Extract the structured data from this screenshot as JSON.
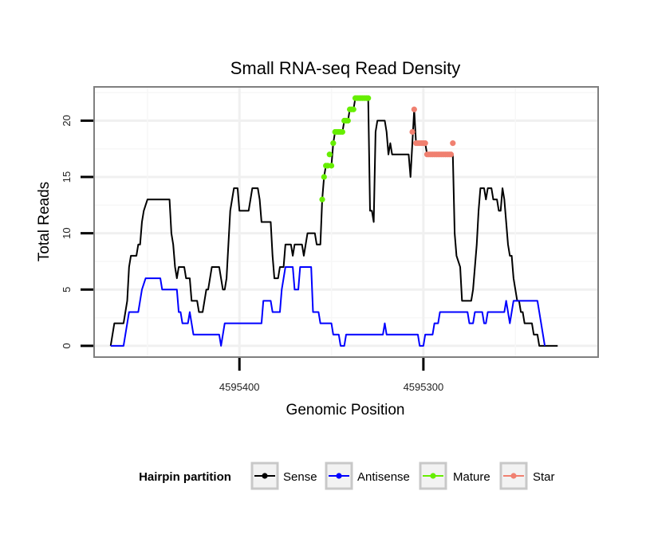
{
  "chart_data": {
    "type": "line",
    "title": "Small RNA-seq Read Density",
    "xlabel": "Genomic Position",
    "ylabel": "Total Reads",
    "x_reversed": true,
    "xlim": [
      4595479,
      4595205
    ],
    "ylim": [
      -1,
      23
    ],
    "x_ticks": [
      {
        "value": 4595400,
        "label": "4595400"
      },
      {
        "value": 4595300,
        "label": "4595300"
      }
    ],
    "y_ticks": [
      {
        "value": 0,
        "label": "0"
      },
      {
        "value": 5,
        "label": "5"
      },
      {
        "value": 10,
        "label": "10"
      },
      {
        "value": 15,
        "label": "15"
      },
      {
        "value": 20,
        "label": "20"
      }
    ],
    "legend": {
      "title": "Hairpin partition",
      "position": "bottom",
      "entries": [
        {
          "name": "Sense",
          "color": "#000000"
        },
        {
          "name": "Antisense",
          "color": "#0000ff"
        },
        {
          "name": "Mature",
          "color": "#66ee00"
        },
        {
          "name": "Star",
          "color": "#f08070"
        }
      ]
    },
    "series": [
      {
        "name": "Sense",
        "color": "#000000",
        "points": [
          [
            4595470,
            0
          ],
          [
            4595468,
            2
          ],
          [
            4595463,
            2
          ],
          [
            4595461,
            4
          ],
          [
            4595460,
            7
          ],
          [
            4595459,
            8
          ],
          [
            4595456,
            8
          ],
          [
            4595455,
            9
          ],
          [
            4595454,
            9
          ],
          [
            4595453,
            11
          ],
          [
            4595452,
            12
          ],
          [
            4595451,
            12.5
          ],
          [
            4595450,
            13
          ],
          [
            4595438,
            13
          ],
          [
            4595437,
            10
          ],
          [
            4595436,
            9
          ],
          [
            4595435,
            7
          ],
          [
            4595434,
            6
          ],
          [
            4595433,
            7
          ],
          [
            4595430,
            7
          ],
          [
            4595429,
            6
          ],
          [
            4595427,
            6
          ],
          [
            4595426,
            4
          ],
          [
            4595423,
            4
          ],
          [
            4595422,
            3
          ],
          [
            4595420,
            3
          ],
          [
            4595419,
            4
          ],
          [
            4595418,
            5
          ],
          [
            4595417,
            5
          ],
          [
            4595416,
            6
          ],
          [
            4595415,
            7
          ],
          [
            4595411,
            7
          ],
          [
            4595410,
            6
          ],
          [
            4595409,
            5
          ],
          [
            4595408,
            5
          ],
          [
            4595407,
            6
          ],
          [
            4595406,
            9
          ],
          [
            4595405,
            12
          ],
          [
            4595404,
            13
          ],
          [
            4595403,
            14
          ],
          [
            4595401,
            14
          ],
          [
            4595400,
            12
          ],
          [
            4595395,
            12
          ],
          [
            4595394,
            13
          ],
          [
            4595393,
            14
          ],
          [
            4595390,
            14
          ],
          [
            4595389,
            13
          ],
          [
            4595388,
            11
          ],
          [
            4595383,
            11
          ],
          [
            4595382,
            8
          ],
          [
            4595381,
            6
          ],
          [
            4595379,
            6
          ],
          [
            4595378,
            7
          ],
          [
            4595376,
            7
          ],
          [
            4595375,
            9
          ],
          [
            4595372,
            9
          ],
          [
            4595371,
            8
          ],
          [
            4595370,
            9
          ],
          [
            4595366,
            9
          ],
          [
            4595365,
            8
          ],
          [
            4595364,
            9
          ],
          [
            4595363,
            10
          ],
          [
            4595359,
            10
          ],
          [
            4595358,
            9
          ],
          [
            4595356,
            9
          ],
          [
            4595355,
            13
          ],
          [
            4595354,
            15
          ],
          [
            4595353,
            16
          ],
          [
            4595350,
            16
          ],
          [
            4595349,
            18
          ],
          [
            4595348,
            19
          ],
          [
            4595344,
            19
          ],
          [
            4595343,
            20
          ],
          [
            4595341,
            20
          ],
          [
            4595340,
            21
          ],
          [
            4595338,
            21
          ],
          [
            4595337,
            22
          ],
          [
            4595330,
            22
          ],
          [
            4595329,
            12
          ],
          [
            4595328,
            12
          ],
          [
            4595327,
            11
          ],
          [
            4595326,
            19
          ],
          [
            4595325,
            20
          ],
          [
            4595321,
            20
          ],
          [
            4595320,
            19
          ],
          [
            4595319,
            17
          ],
          [
            4595318,
            18
          ],
          [
            4595317,
            17
          ],
          [
            4595308,
            17
          ],
          [
            4595307,
            15
          ],
          [
            4595306,
            18
          ],
          [
            4595305,
            21
          ],
          [
            4595304,
            18
          ],
          [
            4595299,
            18
          ],
          [
            4595298,
            17
          ],
          [
            4595284,
            17
          ],
          [
            4595283,
            10
          ],
          [
            4595282,
            8
          ],
          [
            4595281,
            7.5
          ],
          [
            4595280,
            7
          ],
          [
            4595279,
            4
          ],
          [
            4595274,
            4
          ],
          [
            4595273,
            5
          ],
          [
            4595272,
            7
          ],
          [
            4595271,
            9
          ],
          [
            4595270,
            12
          ],
          [
            4595269,
            14
          ],
          [
            4595267,
            14
          ],
          [
            4595266,
            13
          ],
          [
            4595265,
            14
          ],
          [
            4595263,
            14
          ],
          [
            4595262,
            13
          ],
          [
            4595260,
            13
          ],
          [
            4595259,
            12
          ],
          [
            4595258,
            12
          ],
          [
            4595257,
            14
          ],
          [
            4595256,
            13
          ],
          [
            4595255,
            11
          ],
          [
            4595254,
            9
          ],
          [
            4595253,
            8
          ],
          [
            4595252,
            8
          ],
          [
            4595251,
            6
          ],
          [
            4595250,
            5
          ],
          [
            4595249,
            4
          ],
          [
            4595248,
            4
          ],
          [
            4595247,
            3
          ],
          [
            4595246,
            3
          ],
          [
            4595245,
            2
          ],
          [
            4595241,
            2
          ],
          [
            4595240,
            1
          ],
          [
            4595238,
            1
          ],
          [
            4595237,
            0
          ],
          [
            4595227,
            0
          ]
        ]
      },
      {
        "name": "Antisense",
        "color": "#0000ff",
        "points": [
          [
            4595470,
            0
          ],
          [
            4595463,
            0
          ],
          [
            4595462,
            1
          ],
          [
            4595461,
            2
          ],
          [
            4595460,
            3
          ],
          [
            4595455,
            3
          ],
          [
            4595454,
            4
          ],
          [
            4595453,
            5
          ],
          [
            4595452,
            5.5
          ],
          [
            4595451,
            6
          ],
          [
            4595443,
            6
          ],
          [
            4595442,
            5
          ],
          [
            4595434,
            5
          ],
          [
            4595433,
            3
          ],
          [
            4595432,
            3
          ],
          [
            4595431,
            2
          ],
          [
            4595428,
            2
          ],
          [
            4595427,
            3
          ],
          [
            4595426,
            2
          ],
          [
            4595425,
            1
          ],
          [
            4595411,
            1
          ],
          [
            4595410,
            0
          ],
          [
            4595409,
            1
          ],
          [
            4595408,
            2
          ],
          [
            4595388,
            2
          ],
          [
            4595387,
            4
          ],
          [
            4595383,
            4
          ],
          [
            4595382,
            3
          ],
          [
            4595378,
            3
          ],
          [
            4595377,
            5
          ],
          [
            4595376,
            6
          ],
          [
            4595375,
            7
          ],
          [
            4595371,
            7
          ],
          [
            4595370,
            5
          ],
          [
            4595368,
            5
          ],
          [
            4595367,
            7
          ],
          [
            4595361,
            7
          ],
          [
            4595360,
            3
          ],
          [
            4595357,
            3
          ],
          [
            4595356,
            2
          ],
          [
            4595350,
            2
          ],
          [
            4595349,
            1
          ],
          [
            4595346,
            1
          ],
          [
            4595345,
            0
          ],
          [
            4595343,
            0
          ],
          [
            4595342,
            1
          ],
          [
            4595322,
            1
          ],
          [
            4595321,
            2
          ],
          [
            4595320,
            1
          ],
          [
            4595303,
            1
          ],
          [
            4595302,
            0
          ],
          [
            4595300,
            0
          ],
          [
            4595299,
            1
          ],
          [
            4595295,
            1
          ],
          [
            4595294,
            2
          ],
          [
            4595292,
            2
          ],
          [
            4595291,
            3
          ],
          [
            4595276,
            3
          ],
          [
            4595275,
            2
          ],
          [
            4595273,
            2
          ],
          [
            4595272,
            3
          ],
          [
            4595268,
            3
          ],
          [
            4595267,
            2
          ],
          [
            4595266,
            2
          ],
          [
            4595265,
            3
          ],
          [
            4595256,
            3
          ],
          [
            4595255,
            4
          ],
          [
            4595254,
            3
          ],
          [
            4595253,
            2
          ],
          [
            4595252,
            3
          ],
          [
            4595251,
            4
          ],
          [
            4595238,
            4
          ],
          [
            4595237,
            3
          ],
          [
            4595236,
            2
          ],
          [
            4595235,
            1
          ],
          [
            4595234,
            0
          ]
        ]
      },
      {
        "name": "Mature",
        "color": "#66ee00",
        "points": [
          [
            4595355,
            13
          ],
          [
            4595354,
            15
          ],
          [
            4595353,
            16
          ],
          [
            4595352,
            16
          ],
          [
            4595351,
            17
          ],
          [
            4595350,
            16
          ],
          [
            4595349,
            18
          ],
          [
            4595348,
            19
          ],
          [
            4595347,
            19
          ],
          [
            4595346,
            19
          ],
          [
            4595345,
            19
          ],
          [
            4595344,
            19
          ],
          [
            4595343,
            20
          ],
          [
            4595342,
            20
          ],
          [
            4595341,
            20
          ],
          [
            4595340,
            21
          ],
          [
            4595339,
            21
          ],
          [
            4595338,
            21
          ],
          [
            4595337,
            22
          ],
          [
            4595336,
            22
          ],
          [
            4595335,
            22
          ],
          [
            4595334,
            22
          ],
          [
            4595333,
            22
          ],
          [
            4595332,
            22
          ],
          [
            4595331,
            22
          ],
          [
            4595330,
            22
          ]
        ]
      },
      {
        "name": "Star",
        "color": "#f08070",
        "points": [
          [
            4595305,
            21
          ],
          [
            4595306,
            19
          ],
          [
            4595304,
            18
          ],
          [
            4595303,
            18
          ],
          [
            4595302,
            18
          ],
          [
            4595301,
            18
          ],
          [
            4595300,
            18
          ],
          [
            4595299,
            18
          ],
          [
            4595298,
            17
          ],
          [
            4595297,
            17
          ],
          [
            4595296,
            17
          ],
          [
            4595295,
            17
          ],
          [
            4595294,
            17
          ],
          [
            4595293,
            17
          ],
          [
            4595292,
            17
          ],
          [
            4595291,
            17
          ],
          [
            4595290,
            17
          ],
          [
            4595289,
            17
          ],
          [
            4595288,
            17
          ],
          [
            4595287,
            17
          ],
          [
            4595286,
            17
          ],
          [
            4595285,
            17
          ],
          [
            4595284,
            18
          ]
        ]
      }
    ]
  }
}
